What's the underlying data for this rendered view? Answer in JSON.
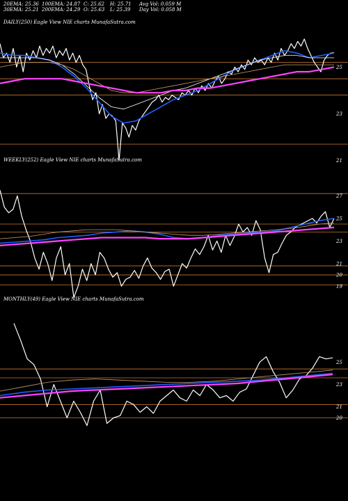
{
  "header": {
    "ema20": "20EMA: 25.36",
    "ema100": "100EMA: 24.87",
    "close": "C: 25.62",
    "high": "H: 25.71",
    "avg_vol": "Avg Vol: 0.059 M",
    "ema30": "30EMA: 25.21",
    "ema200": "200EMA: 24.29",
    "open": "O: 25.63",
    "low": "L: 25.39",
    "day_vol": "Day Vol: 0.058 M"
  },
  "colors": {
    "price": "#ffffff",
    "ema_short": "#1f5fff",
    "ema_mid": "#ffffff",
    "ema_long": "#ff44ff",
    "ema_tan": "#c8a070",
    "level_line": "#c87832",
    "background": "#000000"
  },
  "chart_data": [
    {
      "type": "line",
      "title": "DAILY(250) Eagle  View  NIE charts MunafaSutra.com",
      "y_ticks": [
        "25",
        "23",
        "21"
      ],
      "y_tick_values": [
        25,
        23,
        21
      ],
      "level_lines": [
        25.2,
        24.5,
        23.8,
        21.7
      ],
      "ylim": [
        20.9,
        26.8
      ],
      "series": [
        {
          "role": "price",
          "color": "#ffffff",
          "width": 1.2,
          "values": [
            26.0,
            25.4,
            25.6,
            25.2,
            25.8,
            25.0,
            25.5,
            24.8,
            25.6,
            25.3,
            25.7,
            25.4,
            25.9,
            25.5,
            25.8,
            25.6,
            25.9,
            25.4,
            25.7,
            25.5,
            25.8,
            25.3,
            25.6,
            25.2,
            25.5,
            25.1,
            24.9,
            24.2,
            23.6,
            23.9,
            23.0,
            23.4,
            22.8,
            23.0,
            22.9,
            22.7,
            21.0,
            22.6,
            22.4,
            22.0,
            22.5,
            22.3,
            22.7,
            22.9,
            23.1,
            23.3,
            23.5,
            23.6,
            23.8,
            23.5,
            23.7,
            23.6,
            23.8,
            23.7,
            23.6,
            23.9,
            23.8,
            24.0,
            23.8,
            24.1,
            23.9,
            24.2,
            24.0,
            24.3,
            24.1,
            24.4,
            24.6,
            24.3,
            24.5,
            24.8,
            24.7,
            25.0,
            24.8,
            25.1,
            24.9,
            25.3,
            25.1,
            25.4,
            25.2,
            25.3,
            25.1,
            25.4,
            25.2,
            25.6,
            25.3,
            25.8,
            25.5,
            25.7,
            26.0,
            25.8,
            26.1,
            25.9,
            26.2,
            25.8,
            25.5,
            25.2,
            25.0,
            24.8,
            25.3,
            25.5,
            25.6,
            25.62
          ]
        },
        {
          "role": "ema_short",
          "color": "#1f5fff",
          "width": 1.6,
          "values": [
            25.6,
            25.5,
            25.5,
            25.4,
            25.3,
            25.0,
            24.6,
            24.1,
            23.5,
            22.9,
            22.6,
            22.7,
            23.0,
            23.3,
            23.6,
            23.8,
            24.0,
            24.3,
            24.6,
            24.9,
            25.1,
            25.3,
            25.5,
            25.7,
            25.6,
            25.4,
            25.5,
            25.6
          ]
        },
        {
          "role": "ema_mid",
          "color": "#ffffff",
          "width": 0.8,
          "values": [
            25.4,
            25.4,
            25.4,
            25.4,
            25.3,
            25.1,
            24.7,
            24.2,
            23.7,
            23.3,
            23.2,
            23.4,
            23.6,
            23.8,
            24.0,
            24.1,
            24.3,
            24.5,
            24.7,
            24.9,
            25.1,
            25.3,
            25.4,
            25.5,
            25.5,
            25.4,
            25.4,
            25.4
          ]
        },
        {
          "role": "ema_tan",
          "color": "#c8a070",
          "width": 0.8,
          "values": [
            25.0,
            25.1,
            25.2,
            25.2,
            25.2,
            25.1,
            24.9,
            24.6,
            24.3,
            24.0,
            23.9,
            23.9,
            24.0,
            24.1,
            24.2,
            24.3,
            24.4,
            24.5,
            24.6,
            24.7,
            24.8,
            24.9,
            25.0,
            25.1,
            25.1,
            25.1,
            25.1,
            25.1
          ]
        },
        {
          "role": "ema_long",
          "color": "#ff44ff",
          "width": 2.2,
          "values": [
            24.3,
            24.4,
            24.5,
            24.5,
            24.5,
            24.5,
            24.4,
            24.3,
            24.2,
            24.1,
            24.0,
            23.9,
            23.9,
            23.9,
            24.0,
            24.0,
            24.1,
            24.1,
            24.2,
            24.3,
            24.4,
            24.5,
            24.6,
            24.7,
            24.8,
            24.8,
            24.9,
            25.0
          ]
        }
      ]
    },
    {
      "type": "line",
      "title": "WEEKLY(252) Eagle  View  NIE charts MunafaSutra.com",
      "y_ticks": [
        "27",
        "25",
        "23",
        "21",
        "20",
        "19"
      ],
      "y_tick_values": [
        27,
        25,
        23,
        21,
        20,
        19
      ],
      "level_lines": [
        27.2,
        24.5,
        23.8,
        20.8,
        20.0,
        19.1
      ],
      "ylim": [
        17.6,
        29.8
      ],
      "series": [
        {
          "role": "price",
          "color": "#ffffff",
          "width": 1.2,
          "values": [
            27.5,
            26.0,
            25.5,
            25.8,
            27.0,
            25.2,
            24.0,
            23.0,
            21.5,
            20.5,
            22.0,
            21.0,
            19.5,
            21.5,
            22.5,
            20.0,
            21.0,
            18.0,
            19.0,
            20.5,
            19.5,
            21.0,
            20.0,
            22.0,
            21.5,
            20.5,
            19.8,
            20.2,
            19.0,
            19.6,
            19.8,
            20.4,
            19.7,
            20.8,
            21.5,
            20.6,
            20.2,
            19.6,
            20.3,
            20.5,
            19.0,
            20.0,
            21.0,
            20.6,
            21.5,
            22.3,
            21.8,
            22.5,
            23.5,
            22.2,
            23.0,
            22.0,
            23.5,
            22.6,
            23.4,
            24.5,
            23.8,
            24.2,
            23.5,
            24.8,
            24.0,
            21.5,
            20.2,
            21.8,
            22.0,
            22.8,
            23.5,
            23.8,
            24.2,
            24.4,
            24.6,
            24.8,
            25.0,
            24.6,
            25.2,
            25.6,
            24.2,
            25.0
          ]
        },
        {
          "role": "ema_short",
          "color": "#1f5fff",
          "width": 1.6,
          "values": [
            22.8,
            22.9,
            23.0,
            23.1,
            23.3,
            23.4,
            23.5,
            23.7,
            23.8,
            23.9,
            23.8,
            23.6,
            23.3,
            23.2,
            23.3,
            23.5,
            23.6,
            23.7,
            23.8,
            23.9,
            24.2,
            24.5,
            24.8,
            25.0
          ]
        },
        {
          "role": "ema_tan",
          "color": "#c8a070",
          "width": 0.8,
          "values": [
            23.2,
            23.3,
            23.4,
            23.6,
            23.8,
            23.9,
            24.0,
            24.0,
            24.0,
            23.9,
            23.8,
            23.7,
            23.6,
            23.5,
            23.5,
            23.6,
            23.7,
            23.8,
            23.9,
            24.0,
            24.1,
            24.3,
            24.5,
            24.6
          ]
        },
        {
          "role": "ema_long",
          "color": "#ff44ff",
          "width": 2.2,
          "values": [
            22.6,
            22.7,
            22.8,
            22.9,
            23.0,
            23.1,
            23.2,
            23.3,
            23.3,
            23.3,
            23.3,
            23.2,
            23.2,
            23.2,
            23.3,
            23.4,
            23.5,
            23.6,
            23.7,
            23.8,
            23.9,
            24.0,
            24.1,
            24.2
          ]
        }
      ]
    },
    {
      "type": "line",
      "title": "MONTHLY(49) Eagle  View  NIE charts MunafaSutra.com",
      "y_ticks": [
        "25",
        "23",
        "21",
        "20"
      ],
      "y_tick_values": [
        25,
        23,
        21,
        20
      ],
      "level_lines": [
        24.4,
        23.6,
        21.2,
        20.0
      ],
      "ylim": [
        17.9,
        30.3
      ],
      "series": [
        {
          "role": "price",
          "color": "#ffffff",
          "width": 1.2,
          "values": [
            28.5,
            27.0,
            25.3,
            24.8,
            23.5,
            21.0,
            23.0,
            21.5,
            20.0,
            21.5,
            20.5,
            19.3,
            21.5,
            22.5,
            19.5,
            20.0,
            20.2,
            21.5,
            21.2,
            20.5,
            21.0,
            20.4,
            21.5,
            22.0,
            22.5,
            21.8,
            21.5,
            22.5,
            22.0,
            23.0,
            22.5,
            21.8,
            22.0,
            21.5,
            22.3,
            22.6,
            23.8,
            25.0,
            25.5,
            24.2,
            23.2,
            21.8,
            22.5,
            23.5,
            23.8,
            24.5,
            25.5,
            25.3,
            25.4
          ]
        },
        {
          "role": "ema_short",
          "color": "#1f5fff",
          "width": 1.6,
          "values": [
            22.0,
            22.3,
            22.5,
            22.6,
            22.7,
            22.8,
            22.9,
            23.0,
            23.1,
            23.2,
            23.3,
            23.4,
            23.6,
            23.8,
            24.0
          ]
        },
        {
          "role": "ema_tan",
          "color": "#c8a070",
          "width": 0.8,
          "values": [
            22.4,
            22.8,
            23.2,
            23.4,
            23.5,
            23.4,
            23.3,
            23.2,
            23.2,
            23.3,
            23.5,
            23.7,
            23.9,
            24.1,
            24.3
          ]
        },
        {
          "role": "ema_long",
          "color": "#ff44ff",
          "width": 2.2,
          "values": [
            21.8,
            22.0,
            22.2,
            22.4,
            22.5,
            22.6,
            22.7,
            22.8,
            22.9,
            23.0,
            23.1,
            23.3,
            23.5,
            23.7,
            23.9
          ]
        }
      ]
    }
  ]
}
